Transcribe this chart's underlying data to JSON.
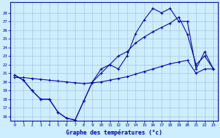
{
  "xlabel": "Graphe des températures (°c)",
  "bg_color": "#cceeff",
  "grid_color": "#aaccdd",
  "line_color": "#0000aa",
  "x_ticks": [
    0,
    1,
    2,
    3,
    4,
    5,
    6,
    7,
    8,
    9,
    10,
    11,
    12,
    13,
    14,
    15,
    16,
    17,
    18,
    19,
    20,
    21,
    22,
    23
  ],
  "y_ticks": [
    16,
    17,
    18,
    19,
    20,
    21,
    22,
    23,
    24,
    25,
    26,
    27,
    28
  ],
  "ylim": [
    15.5,
    29.2
  ],
  "xlim": [
    -0.5,
    23.5
  ],
  "series1": [
    20.8,
    20.2,
    19.0,
    18.0,
    18.0,
    16.5,
    15.8,
    15.6,
    17.8,
    20.0,
    21.5,
    22.0,
    21.5,
    23.0,
    25.6,
    27.2,
    28.5,
    28.0,
    28.5,
    27.0,
    27.0,
    21.5,
    23.5,
    21.5
  ],
  "series2": [
    20.8,
    20.2,
    19.0,
    18.0,
    18.0,
    16.5,
    15.8,
    15.6,
    17.8,
    20.0,
    21.0,
    22.0,
    23.0,
    23.5,
    24.5,
    25.2,
    25.8,
    26.3,
    26.8,
    27.5,
    25.5,
    22.0,
    23.0,
    21.5
  ],
  "series3": [
    20.5,
    20.5,
    20.4,
    20.3,
    20.2,
    20.1,
    20.0,
    19.9,
    19.8,
    19.9,
    20.0,
    20.2,
    20.4,
    20.6,
    20.9,
    21.2,
    21.5,
    21.8,
    22.1,
    22.3,
    22.5,
    21.0,
    21.5,
    21.5
  ]
}
